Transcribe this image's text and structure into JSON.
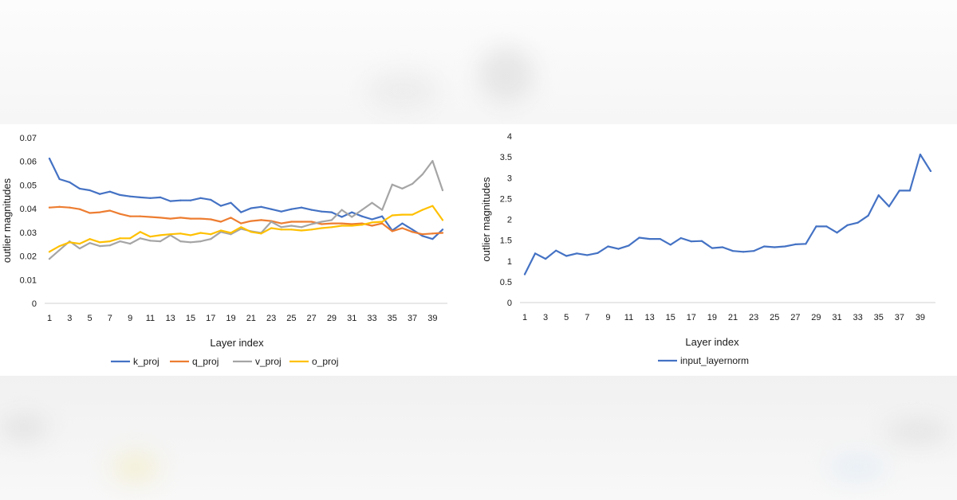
{
  "chart_data": [
    {
      "type": "line",
      "xlabel": "Layer index",
      "ylabel": "outlier magnitudes",
      "ylim": [
        0,
        0.07
      ],
      "yticks": [
        "0",
        "0.01",
        "0.02",
        "0.03",
        "0.04",
        "0.05",
        "0.06",
        "0.07"
      ],
      "xticks": [
        "1",
        "3",
        "5",
        "7",
        "9",
        "11",
        "13",
        "15",
        "17",
        "19",
        "21",
        "23",
        "25",
        "27",
        "29",
        "31",
        "33",
        "35",
        "37",
        "39"
      ],
      "x": [
        1,
        2,
        3,
        4,
        5,
        6,
        7,
        8,
        9,
        10,
        11,
        12,
        13,
        14,
        15,
        16,
        17,
        18,
        19,
        20,
        21,
        22,
        23,
        24,
        25,
        26,
        27,
        28,
        29,
        30,
        31,
        32,
        33,
        34,
        35,
        36,
        37,
        38,
        39,
        40
      ],
      "legend_position": "bottom",
      "grid": false,
      "series": [
        {
          "name": "k_proj",
          "color": "#4472c4",
          "values": [
            0.0612,
            0.0525,
            0.0512,
            0.0485,
            0.0478,
            0.0462,
            0.0472,
            0.0458,
            0.0452,
            0.0448,
            0.0445,
            0.0448,
            0.0432,
            0.0435,
            0.0435,
            0.0445,
            0.0438,
            0.0412,
            0.0425,
            0.0385,
            0.0402,
            0.0408,
            0.0398,
            0.0388,
            0.0398,
            0.0405,
            0.0395,
            0.0388,
            0.0385,
            0.0365,
            0.0385,
            0.0368,
            0.0355,
            0.0368,
            0.0308,
            0.0338,
            0.0312,
            0.0285,
            0.0272,
            0.0312
          ]
        },
        {
          "name": "q_proj",
          "color": "#ed7d31",
          "values": [
            0.0405,
            0.0408,
            0.0405,
            0.0398,
            0.0382,
            0.0385,
            0.0392,
            0.0378,
            0.0368,
            0.0368,
            0.0365,
            0.0362,
            0.0358,
            0.0362,
            0.0358,
            0.0358,
            0.0355,
            0.0345,
            0.0362,
            0.0338,
            0.0348,
            0.0352,
            0.0348,
            0.0338,
            0.0345,
            0.0345,
            0.0345,
            0.0335,
            0.0338,
            0.0338,
            0.0335,
            0.0338,
            0.0328,
            0.0338,
            0.0305,
            0.0318,
            0.0302,
            0.0292,
            0.0295,
            0.0298
          ]
        },
        {
          "name": "v_proj",
          "color": "#a5a5a5",
          "values": [
            0.0188,
            0.0225,
            0.0262,
            0.0232,
            0.0255,
            0.0242,
            0.0245,
            0.0262,
            0.0252,
            0.0275,
            0.0265,
            0.0262,
            0.0288,
            0.0262,
            0.0258,
            0.0262,
            0.0272,
            0.0302,
            0.0292,
            0.0315,
            0.0305,
            0.0298,
            0.0345,
            0.0322,
            0.0328,
            0.0322,
            0.0335,
            0.0345,
            0.0352,
            0.0395,
            0.0365,
            0.0395,
            0.0425,
            0.0395,
            0.0502,
            0.0485,
            0.0505,
            0.0545,
            0.0602,
            0.0478
          ]
        },
        {
          "name": "o_proj",
          "color": "#ffc000",
          "values": [
            0.0218,
            0.0242,
            0.0258,
            0.0252,
            0.0272,
            0.0258,
            0.0262,
            0.0275,
            0.0275,
            0.0302,
            0.0282,
            0.0288,
            0.0292,
            0.0295,
            0.0288,
            0.0298,
            0.0292,
            0.0308,
            0.0298,
            0.0322,
            0.0302,
            0.0295,
            0.0318,
            0.0312,
            0.0312,
            0.0308,
            0.0312,
            0.0318,
            0.0322,
            0.0328,
            0.0328,
            0.0332,
            0.0342,
            0.0345,
            0.0372,
            0.0375,
            0.0375,
            0.0395,
            0.0412,
            0.0352
          ]
        }
      ]
    },
    {
      "type": "line",
      "xlabel": "Layer index",
      "ylabel": "outlier magnitudes",
      "ylim": [
        0,
        4
      ],
      "yticks": [
        "0",
        "0.5",
        "1",
        "1.5",
        "2",
        "2.5",
        "3",
        "3.5",
        "4"
      ],
      "xticks": [
        "1",
        "3",
        "5",
        "7",
        "9",
        "11",
        "13",
        "15",
        "17",
        "19",
        "21",
        "23",
        "25",
        "27",
        "29",
        "31",
        "33",
        "35",
        "37",
        "39"
      ],
      "x": [
        1,
        2,
        3,
        4,
        5,
        6,
        7,
        8,
        9,
        10,
        11,
        12,
        13,
        14,
        15,
        16,
        17,
        18,
        19,
        20,
        21,
        22,
        23,
        24,
        25,
        26,
        27,
        28,
        29,
        30,
        31,
        32,
        33,
        34,
        35,
        36,
        37,
        38,
        39,
        40
      ],
      "legend_position": "bottom",
      "grid": false,
      "series": [
        {
          "name": "input_layernorm",
          "color": "#4472c4",
          "values": [
            0.68,
            1.18,
            1.05,
            1.25,
            1.12,
            1.18,
            1.14,
            1.19,
            1.35,
            1.29,
            1.37,
            1.56,
            1.53,
            1.53,
            1.39,
            1.55,
            1.47,
            1.48,
            1.31,
            1.33,
            1.24,
            1.22,
            1.24,
            1.35,
            1.33,
            1.35,
            1.4,
            1.41,
            1.83,
            1.83,
            1.68,
            1.86,
            1.92,
            2.09,
            2.58,
            2.31,
            2.69,
            2.69,
            3.56,
            3.16
          ]
        }
      ]
    }
  ]
}
